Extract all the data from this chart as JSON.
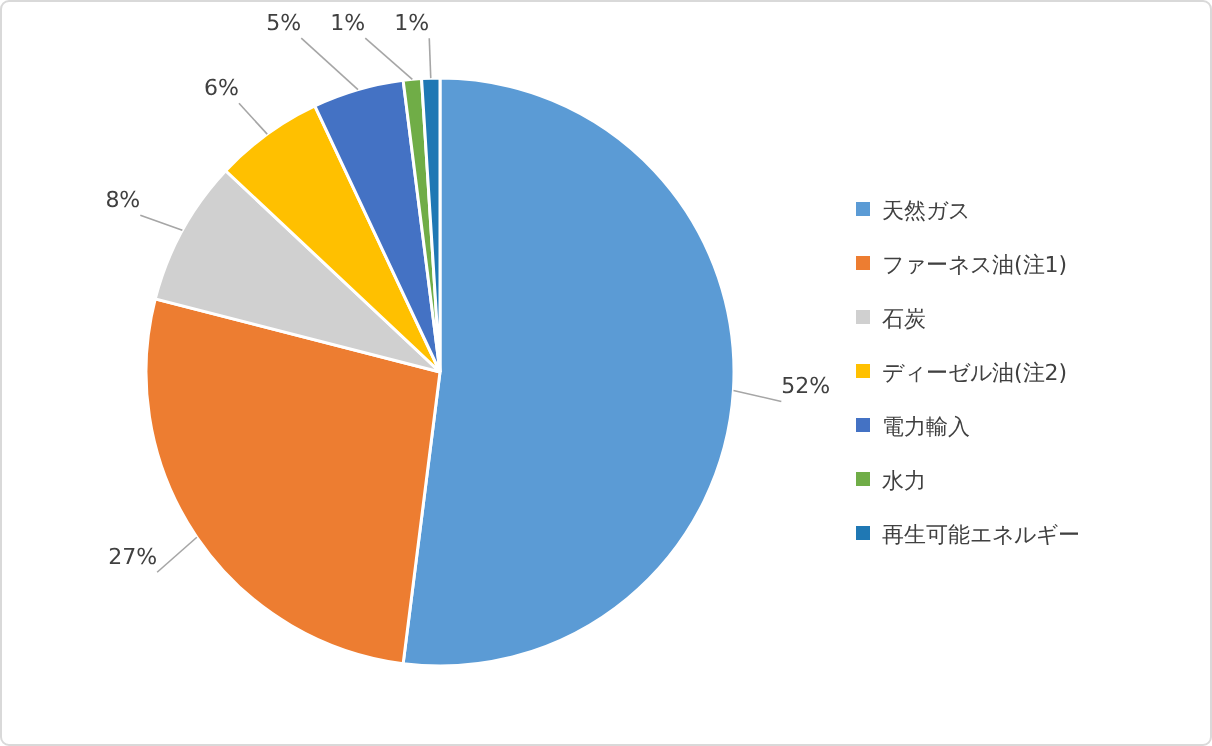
{
  "chart_data": {
    "type": "pie",
    "categories": [
      "天然ガス",
      "ファーネス油(注1)",
      "石炭",
      "ディーゼル油(注2)",
      "電力輸入",
      "水力",
      "再生可能エネルギー"
    ],
    "values": [
      52,
      27,
      8,
      6,
      5,
      1,
      1
    ],
    "colors": [
      "#5b9bd5",
      "#ed7d31",
      "#d0d0d0",
      "#ffc000",
      "#4472c4",
      "#70ad47",
      "#1f78b4"
    ],
    "value_labels": [
      "52%",
      "27%",
      "8%",
      "6%",
      "5%",
      "1%",
      "1%"
    ],
    "legend": "right"
  }
}
